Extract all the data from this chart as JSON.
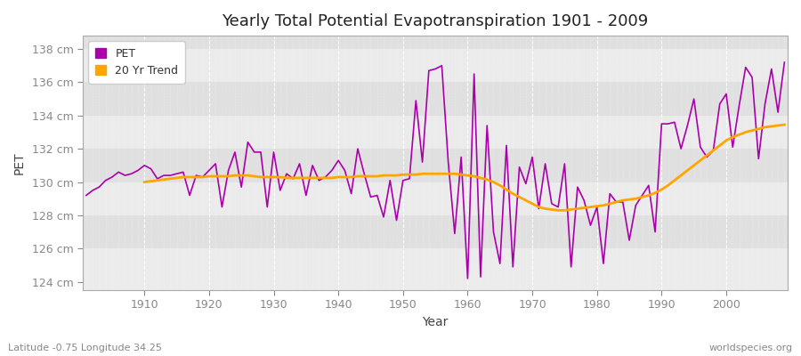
{
  "title": "Yearly Total Potential Evapotranspiration 1901 - 2009",
  "xlabel": "Year",
  "ylabel": "PET",
  "subtitle_left": "Latitude -0.75 Longitude 34.25",
  "subtitle_right": "worldspecies.org",
  "pet_color": "#AA00AA",
  "trend_color": "#FFA500",
  "bg_light": "#F0F0F0",
  "bg_dark": "#E0E0E0",
  "fig_bg": "#FFFFFF",
  "ylim": [
    123.5,
    138.8
  ],
  "ytick_values": [
    124,
    126,
    128,
    130,
    132,
    134,
    136,
    138
  ],
  "ytick_labels": [
    "124 cm",
    "126 cm",
    "128 cm",
    "130 cm",
    "132 cm",
    "134 cm",
    "136 cm",
    "138 cm"
  ],
  "years": [
    1901,
    1902,
    1903,
    1904,
    1905,
    1906,
    1907,
    1908,
    1909,
    1910,
    1911,
    1912,
    1913,
    1914,
    1915,
    1916,
    1917,
    1918,
    1919,
    1920,
    1921,
    1922,
    1923,
    1924,
    1925,
    1926,
    1927,
    1928,
    1929,
    1930,
    1931,
    1932,
    1933,
    1934,
    1935,
    1936,
    1937,
    1938,
    1939,
    1940,
    1941,
    1942,
    1943,
    1944,
    1945,
    1946,
    1947,
    1948,
    1949,
    1950,
    1951,
    1952,
    1953,
    1954,
    1955,
    1956,
    1957,
    1958,
    1959,
    1960,
    1961,
    1962,
    1963,
    1964,
    1965,
    1966,
    1967,
    1968,
    1969,
    1970,
    1971,
    1972,
    1973,
    1974,
    1975,
    1976,
    1977,
    1978,
    1979,
    1980,
    1981,
    1982,
    1983,
    1984,
    1985,
    1986,
    1987,
    1988,
    1989,
    1990,
    1991,
    1992,
    1993,
    1994,
    1995,
    1996,
    1997,
    1998,
    1999,
    2000,
    2001,
    2002,
    2003,
    2004,
    2005,
    2006,
    2007,
    2008,
    2009
  ],
  "pet_values": [
    129.2,
    129.5,
    129.7,
    130.1,
    130.3,
    130.6,
    130.4,
    130.5,
    130.7,
    131.0,
    130.8,
    130.2,
    130.4,
    130.4,
    130.5,
    130.6,
    129.2,
    130.4,
    130.3,
    130.7,
    131.1,
    128.5,
    130.7,
    131.8,
    129.7,
    132.4,
    131.8,
    131.8,
    128.5,
    131.8,
    129.5,
    130.5,
    130.2,
    131.1,
    129.2,
    131.0,
    130.1,
    130.3,
    130.7,
    131.3,
    130.7,
    129.3,
    132.0,
    130.5,
    129.1,
    129.2,
    127.9,
    130.1,
    127.7,
    130.1,
    130.2,
    134.9,
    131.2,
    136.7,
    136.8,
    137.0,
    131.2,
    126.9,
    131.5,
    124.2,
    136.5,
    124.3,
    133.4,
    127.0,
    125.1,
    132.2,
    124.9,
    130.9,
    129.9,
    131.5,
    128.4,
    131.1,
    128.7,
    128.5,
    131.1,
    124.9,
    129.7,
    128.9,
    127.4,
    128.5,
    125.1,
    129.3,
    128.8,
    128.8,
    126.5,
    128.6,
    129.2,
    129.8,
    127.0,
    133.5,
    133.5,
    133.6,
    132.0,
    133.4,
    135.0,
    132.1,
    131.5,
    131.9,
    134.7,
    135.3,
    132.1,
    134.6,
    136.9,
    136.3,
    131.4,
    134.7,
    136.8,
    134.2,
    137.2
  ],
  "trend_years": [
    1910,
    1911,
    1912,
    1913,
    1914,
    1915,
    1916,
    1917,
    1918,
    1919,
    1920,
    1921,
    1922,
    1923,
    1924,
    1925,
    1926,
    1927,
    1928,
    1929,
    1930,
    1931,
    1932,
    1933,
    1934,
    1935,
    1936,
    1937,
    1938,
    1939,
    1940,
    1941,
    1942,
    1943,
    1944,
    1945,
    1946,
    1947,
    1948,
    1949,
    1950,
    1951,
    1952,
    1953,
    1954,
    1955,
    1956,
    1957,
    1958,
    1959,
    1960,
    1961,
    1962,
    1963,
    1964,
    1965,
    1966,
    1967,
    1968,
    1969,
    1970,
    1971,
    1972,
    1973,
    1974,
    1975,
    1976,
    1977,
    1978,
    1979,
    1980,
    1981,
    1982,
    1983,
    1984,
    1985,
    1986,
    1987,
    1988,
    1989,
    1990,
    1991,
    1992,
    1993,
    1994,
    1995,
    1996,
    1997,
    1998,
    1999,
    2000,
    2001,
    2002,
    2003,
    2004,
    2005,
    2006,
    2007,
    2008,
    2009
  ],
  "trend_values": [
    130.0,
    130.05,
    130.1,
    130.15,
    130.2,
    130.25,
    130.3,
    130.3,
    130.3,
    130.3,
    130.35,
    130.35,
    130.35,
    130.35,
    130.4,
    130.4,
    130.4,
    130.35,
    130.3,
    130.3,
    130.3,
    130.3,
    130.25,
    130.25,
    130.25,
    130.25,
    130.25,
    130.25,
    130.25,
    130.25,
    130.3,
    130.3,
    130.3,
    130.35,
    130.35,
    130.35,
    130.35,
    130.4,
    130.4,
    130.4,
    130.45,
    130.45,
    130.45,
    130.5,
    130.5,
    130.5,
    130.5,
    130.5,
    130.5,
    130.45,
    130.4,
    130.35,
    130.25,
    130.15,
    130.0,
    129.8,
    129.55,
    129.3,
    129.1,
    128.9,
    128.7,
    128.5,
    128.4,
    128.35,
    128.3,
    128.3,
    128.35,
    128.4,
    128.45,
    128.5,
    128.55,
    128.6,
    128.7,
    128.8,
    128.9,
    128.95,
    129.0,
    129.1,
    129.2,
    129.35,
    129.55,
    129.8,
    130.1,
    130.4,
    130.7,
    131.0,
    131.3,
    131.6,
    131.9,
    132.2,
    132.5,
    132.7,
    132.85,
    133.0,
    133.1,
    133.2,
    133.3,
    133.35,
    133.4,
    133.45
  ],
  "xtick_positions": [
    1910,
    1920,
    1930,
    1940,
    1950,
    1960,
    1970,
    1980,
    1990,
    2000
  ],
  "band_colors": [
    "#EBEBEB",
    "#E0E0E0"
  ]
}
